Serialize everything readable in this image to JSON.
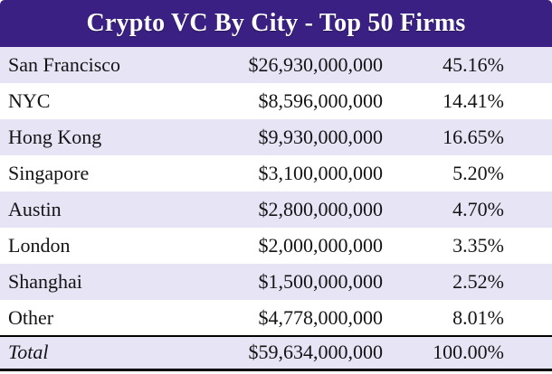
{
  "title": "Crypto VC By City - Top 50 Firms",
  "colors": {
    "header_bg": "#3a2082",
    "header_text": "#ffffff",
    "row_alt_bg": "#e6e4f5",
    "row_bg": "#ffffff",
    "text_color": "#141414",
    "divider_color": "#000000"
  },
  "chart_data": {
    "type": "table",
    "title": "Crypto VC By City - Top 50 Firms",
    "rows": [
      {
        "city": "San Francisco",
        "amount": "$26,930,000,000",
        "percent": "45.16%"
      },
      {
        "city": "NYC",
        "amount": "$8,596,000,000",
        "percent": "14.41%"
      },
      {
        "city": "Hong Kong",
        "amount": "$9,930,000,000",
        "percent": "16.65%"
      },
      {
        "city": "Singapore",
        "amount": "$3,100,000,000",
        "percent": "5.20%"
      },
      {
        "city": "Austin",
        "amount": "$2,800,000,000",
        "percent": "4.70%"
      },
      {
        "city": "London",
        "amount": "$2,000,000,000",
        "percent": "3.35%"
      },
      {
        "city": "Shanghai",
        "amount": "$1,500,000,000",
        "percent": "2.52%"
      },
      {
        "city": "Other",
        "amount": "$4,778,000,000",
        "percent": "8.01%"
      }
    ],
    "total_row": {
      "city": "Total",
      "amount": "$59,634,000,000",
      "percent": "100.00%"
    }
  }
}
